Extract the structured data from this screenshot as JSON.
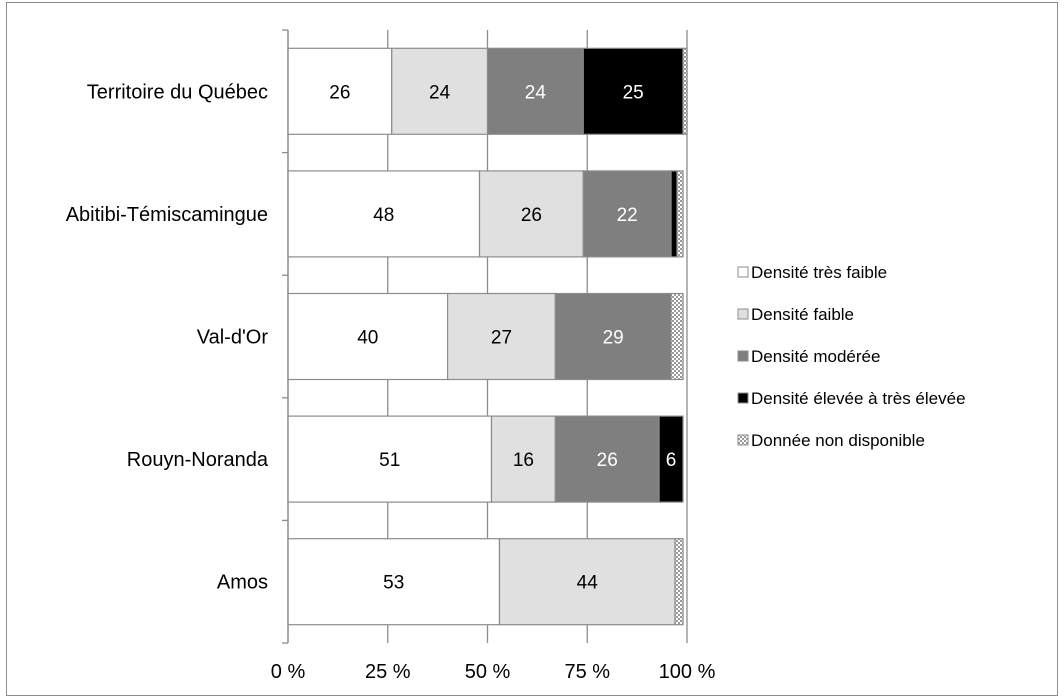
{
  "chart_data": {
    "type": "bar",
    "orientation": "horizontal",
    "stacked": "percent",
    "categories": [
      "Territoire du Québec",
      "Abitibi-Témiscamingue",
      "Val-d'Or",
      "Rouyn-Noranda",
      "Amos"
    ],
    "series": [
      {
        "name": "Densité très faible",
        "color": "#ffffff",
        "pattern": "solid",
        "label_color": "#000000",
        "values": [
          26,
          48,
          40,
          51,
          53
        ],
        "labels": [
          "26",
          "48",
          "40",
          "51",
          "53"
        ]
      },
      {
        "name": "Densité faible",
        "color": "#e0e0e0",
        "pattern": "solid",
        "label_color": "#000000",
        "values": [
          24,
          26,
          27,
          16,
          44
        ],
        "labels": [
          "24",
          "26",
          "27",
          "16",
          "44"
        ]
      },
      {
        "name": "Densité modérée",
        "color": "#7f7f7f",
        "pattern": "solid",
        "label_color": "#ffffff",
        "values": [
          24,
          22,
          29,
          26,
          0
        ],
        "labels": [
          "24",
          "22",
          "29",
          "26",
          ""
        ]
      },
      {
        "name": "Densité élevée à très élevée",
        "color": "#000000",
        "pattern": "solid",
        "label_color": "#ffffff",
        "values": [
          25,
          1.5,
          0,
          6,
          0
        ],
        "labels": [
          "25",
          "",
          "",
          "6",
          ""
        ]
      },
      {
        "name": "Donnée non disponible",
        "color": "#d9d9d9",
        "pattern": "checker",
        "label_color": "#000000",
        "values": [
          1,
          1.5,
          3,
          0,
          2
        ],
        "labels": [
          "",
          "",
          "",
          "",
          ""
        ]
      }
    ],
    "x_ticks": [
      "0 %",
      "25 %",
      "50 %",
      "75 %",
      "100 %"
    ],
    "xlim": [
      0,
      100
    ],
    "grid": "vertical",
    "legend_position": "right"
  }
}
